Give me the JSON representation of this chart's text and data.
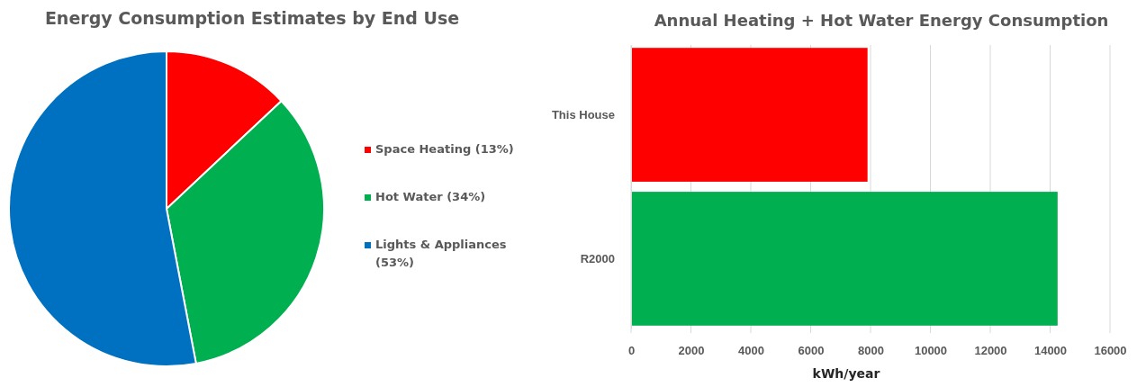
{
  "chart_data": [
    {
      "type": "pie",
      "title": "Energy Consumption Estimates by End Use",
      "categories": [
        "Space Heating (13%)",
        "Hot Water (34%)",
        "Lights & Appliances (53%)"
      ],
      "values": [
        13,
        34,
        53
      ],
      "colors": [
        "#ff0000",
        "#00b050",
        "#0070c0"
      ],
      "legend": "right"
    },
    {
      "type": "bar",
      "title": "Annual Heating + Hot Water Energy Consumption",
      "orientation": "horizontal",
      "categories": [
        "This House",
        "R2000"
      ],
      "values": [
        7900,
        14250
      ],
      "colors": [
        "#ff0000",
        "#00b050"
      ],
      "xlim": [
        0,
        16000
      ],
      "xticks": [
        0,
        2000,
        4000,
        6000,
        8000,
        10000,
        12000,
        14000,
        16000
      ],
      "xlabel": "kWh/year",
      "grid": "x"
    }
  ]
}
